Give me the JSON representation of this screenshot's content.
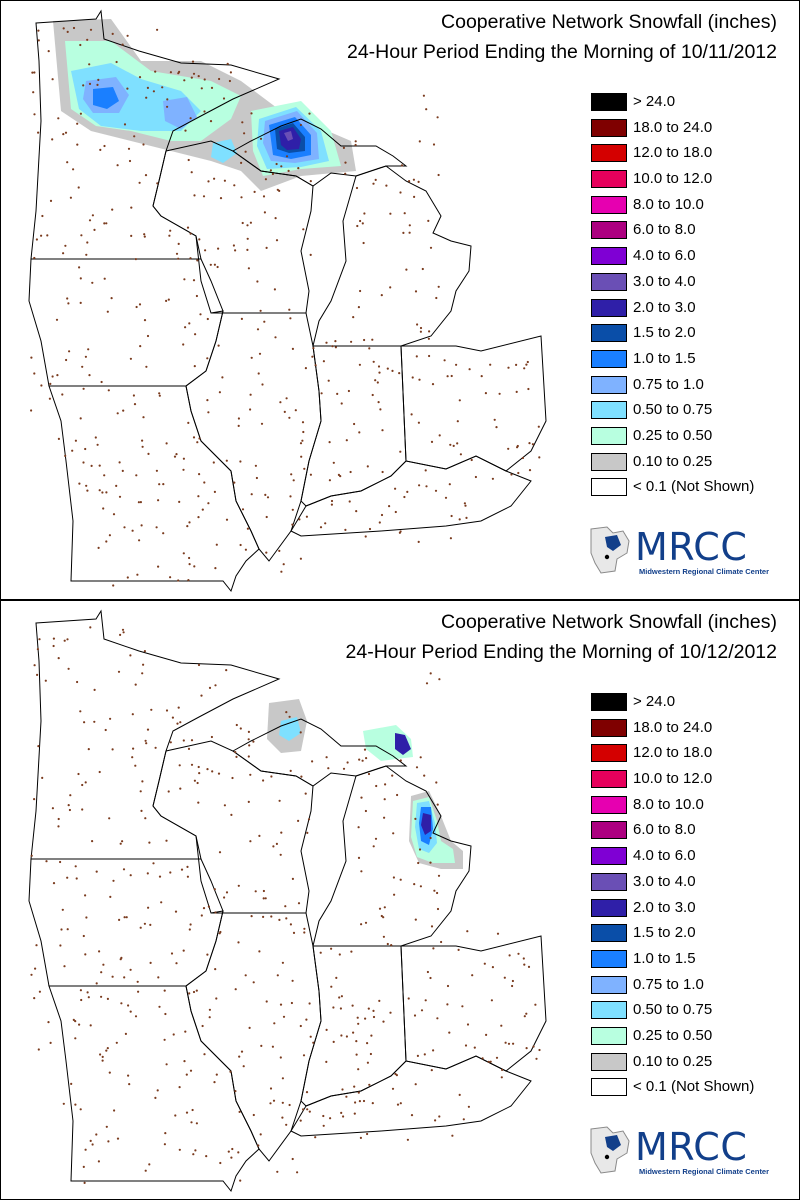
{
  "panels": [
    {
      "title": "Cooperative Network Snowfall (inches)",
      "subtitle": "24-Hour Period Ending the Morning of 10/11/2012"
    },
    {
      "title": "Cooperative Network Snowfall (inches)",
      "subtitle": "24-Hour Period Ending the Morning of 10/12/2012"
    }
  ],
  "legend": [
    {
      "label": "> 24.0",
      "color": "#000000"
    },
    {
      "label": "18.0 to 24.0",
      "color": "#7f0000"
    },
    {
      "label": "12.0 to 18.0",
      "color": "#d40000"
    },
    {
      "label": "10.0 to 12.0",
      "color": "#e6005c"
    },
    {
      "label": "8.0 to 10.0",
      "color": "#e600b0"
    },
    {
      "label": "6.0 to 8.0",
      "color": "#ac0080"
    },
    {
      "label": "4.0 to 6.0",
      "color": "#7f00d4"
    },
    {
      "label": "3.0 to 4.0",
      "color": "#6a4fb5"
    },
    {
      "label": "2.0 to 3.0",
      "color": "#2f1fa8"
    },
    {
      "label": "1.5 to 2.0",
      "color": "#0a4ea8"
    },
    {
      "label": "1.0 to 1.5",
      "color": "#1a7fff"
    },
    {
      "label": "0.75 to 1.0",
      "color": "#7fb2ff"
    },
    {
      "label": "0.50 to 0.75",
      "color": "#7fe0ff"
    },
    {
      "label": "0.25 to 0.50",
      "color": "#b8ffe0"
    },
    {
      "label": "0.10 to 0.25",
      "color": "#c8c8c8"
    },
    {
      "label": "< 0.1 (Not Shown)",
      "color": "#ffffff"
    }
  ],
  "logo": {
    "name": "MRCC",
    "subtitle": "Midwestern Regional Climate Center"
  },
  "colors": {
    "station_dot": "#7a3b1e",
    "boundary": "#000000"
  }
}
